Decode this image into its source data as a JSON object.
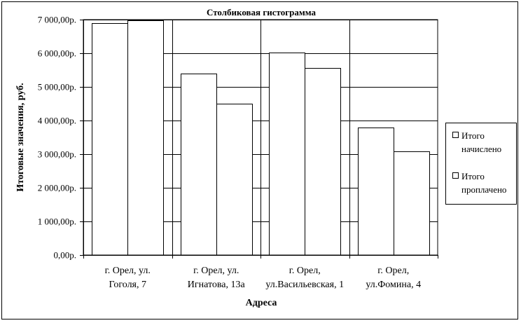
{
  "chart_data": {
    "type": "bar",
    "title": "Столбиковая гистограмма",
    "xlabel": "Адреса",
    "ylabel": "Итоговые значения, руб.",
    "ylim": [
      0,
      7000
    ],
    "yticks": [
      0,
      1000,
      2000,
      3000,
      4000,
      5000,
      6000,
      7000
    ],
    "ytick_labels": [
      "0,00р.",
      "1 000,00р.",
      "2 000,00р.",
      "3 000,00р.",
      "4 000,00р.",
      "5 000,00р.",
      "6 000,00р.",
      "7 000,00р."
    ],
    "categories": [
      [
        "г. Орел, ул.",
        "Гоголя, 7"
      ],
      [
        "г. Орел, ул.",
        "Игнатова, 13а"
      ],
      [
        "г. Орел,",
        "ул.Васильевская, 1"
      ],
      [
        "г. Орел,",
        "ул.Фомина, 4"
      ]
    ],
    "series": [
      {
        "name": "Итого начислено",
        "legend_lines": [
          "Итого",
          "начислено"
        ],
        "values": [
          6900,
          5400,
          6020,
          3800
        ]
      },
      {
        "name": "Итого проплачено",
        "legend_lines": [
          "Итого",
          "проплачено"
        ],
        "values": [
          6980,
          4500,
          5560,
          3080
        ]
      }
    ],
    "grid": true,
    "legend": "right",
    "colors": {
      "bar_fill": "#ffffff",
      "bar_stroke": "#000000",
      "grid": "#000000"
    }
  }
}
